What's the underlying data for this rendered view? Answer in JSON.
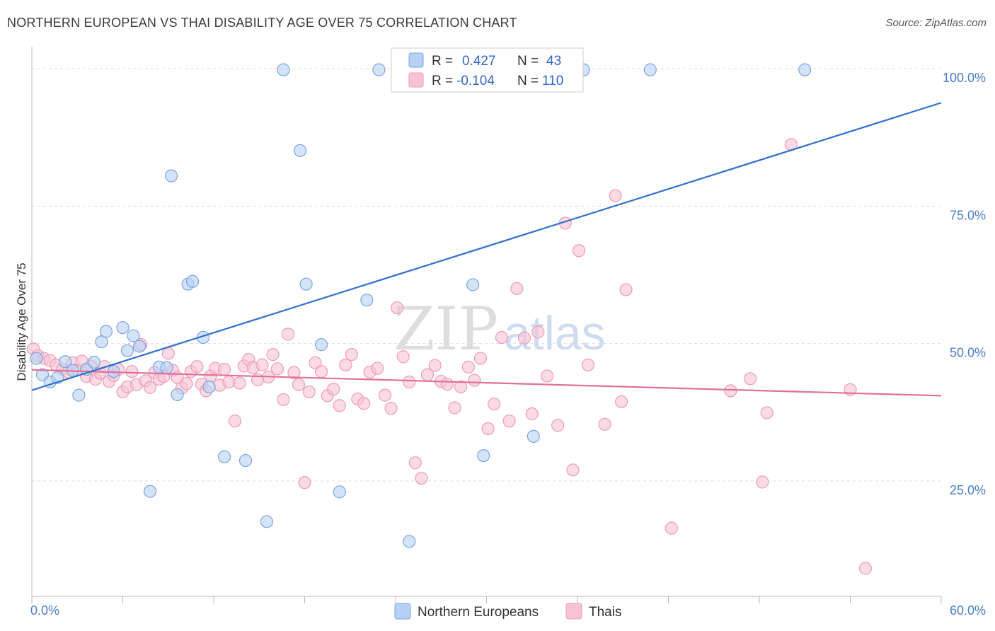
{
  "title": "NORTHERN EUROPEAN VS THAI DISABILITY AGE OVER 75 CORRELATION CHART",
  "source": "Source: ZipAtlas.com",
  "watermark": {
    "part1": "ZIP",
    "part2": "atlas"
  },
  "colors": {
    "blue_fill": "#b8d0f4",
    "blue_stroke": "#7aa6e0",
    "blue_line": "#2f6fce",
    "pink_fill": "#f7c3d4",
    "pink_stroke": "#ee9ab6",
    "pink_line": "#e0709a",
    "tick_label": "#4a7cc7",
    "grid": "#dddddd"
  },
  "legend": {
    "rows": [
      {
        "r_label": "R =",
        "r_value": "0.427",
        "n_label": "N =",
        "n_value": "43"
      },
      {
        "r_label": "R =",
        "r_value": "-0.104",
        "n_label": "N =",
        "n_value": "110"
      }
    ]
  },
  "bottom_legend": [
    "Northern Europeans",
    "Thais"
  ],
  "chart_data": {
    "type": "scatter",
    "title": "NORTHERN EUROPEAN VS THAI DISABILITY AGE OVER 75 CORRELATION CHART",
    "xlabel": "",
    "ylabel": "Disability Age Over 75",
    "xlim": [
      0,
      60
    ],
    "ylim": [
      4,
      104
    ],
    "x_tick_labels": [
      "0.0%",
      "60.0%"
    ],
    "y_ticks": [
      25,
      50,
      75,
      100
    ],
    "y_tick_labels": [
      "25.0%",
      "50.0%",
      "75.0%",
      "100.0%"
    ],
    "grid": true,
    "legend_position": "top-center",
    "series": [
      {
        "name": "Northern Europeans",
        "r": 0.427,
        "n": 43,
        "trend": {
          "x": [
            0,
            60
          ],
          "y": [
            41.5,
            93.8
          ]
        },
        "points": [
          [
            0.3,
            47.3
          ],
          [
            0.7,
            44.3
          ],
          [
            1.2,
            43.0
          ],
          [
            1.7,
            43.8
          ],
          [
            2.2,
            46.7
          ],
          [
            2.7,
            45.1
          ],
          [
            3.1,
            40.6
          ],
          [
            3.6,
            45.3
          ],
          [
            4.1,
            46.6
          ],
          [
            4.6,
            50.3
          ],
          [
            4.9,
            52.2
          ],
          [
            5.4,
            44.9
          ],
          [
            6.0,
            52.9
          ],
          [
            6.3,
            48.7
          ],
          [
            6.7,
            51.4
          ],
          [
            7.1,
            49.5
          ],
          [
            7.8,
            23.1
          ],
          [
            8.4,
            45.7
          ],
          [
            8.9,
            45.6
          ],
          [
            9.2,
            80.5
          ],
          [
            9.6,
            40.7
          ],
          [
            10.3,
            60.8
          ],
          [
            10.6,
            61.3
          ],
          [
            11.3,
            51.1
          ],
          [
            11.7,
            42.1
          ],
          [
            12.7,
            29.4
          ],
          [
            14.1,
            28.7
          ],
          [
            15.5,
            17.6
          ],
          [
            16.6,
            99.8
          ],
          [
            17.7,
            85.1
          ],
          [
            18.1,
            60.8
          ],
          [
            19.1,
            49.8
          ],
          [
            20.3,
            23.0
          ],
          [
            22.1,
            57.9
          ],
          [
            22.9,
            99.8
          ],
          [
            24.9,
            14.0
          ],
          [
            26.1,
            99.8
          ],
          [
            29.1,
            60.7
          ],
          [
            29.8,
            29.6
          ],
          [
            33.1,
            33.1
          ],
          [
            36.4,
            99.8
          ],
          [
            40.8,
            99.8
          ],
          [
            51.0,
            99.8
          ]
        ]
      },
      {
        "name": "Thais",
        "r": -0.104,
        "n": 110,
        "trend": {
          "x": [
            0,
            60
          ],
          "y": [
            45.2,
            40.5
          ]
        },
        "points": [
          [
            0.1,
            49.0
          ],
          [
            0.4,
            47.8
          ],
          [
            0.8,
            47.3
          ],
          [
            1.2,
            46.9
          ],
          [
            1.6,
            46.1
          ],
          [
            2.0,
            45.3
          ],
          [
            2.4,
            44.8
          ],
          [
            2.7,
            46.5
          ],
          [
            3.0,
            45.2
          ],
          [
            3.3,
            46.8
          ],
          [
            3.6,
            44.0
          ],
          [
            3.9,
            45.9
          ],
          [
            4.2,
            43.5
          ],
          [
            4.5,
            44.6
          ],
          [
            4.8,
            45.8
          ],
          [
            5.1,
            43.1
          ],
          [
            5.4,
            44.2
          ],
          [
            5.7,
            45.3
          ],
          [
            6.0,
            41.2
          ],
          [
            6.3,
            42.1
          ],
          [
            6.6,
            44.9
          ],
          [
            6.9,
            42.5
          ],
          [
            7.2,
            49.8
          ],
          [
            7.5,
            43.2
          ],
          [
            7.8,
            42.0
          ],
          [
            8.1,
            44.7
          ],
          [
            8.4,
            43.5
          ],
          [
            8.7,
            44.0
          ],
          [
            9.0,
            48.2
          ],
          [
            9.3,
            45.1
          ],
          [
            9.6,
            43.8
          ],
          [
            9.9,
            41.9
          ],
          [
            10.2,
            42.7
          ],
          [
            10.5,
            44.9
          ],
          [
            10.9,
            45.8
          ],
          [
            11.2,
            42.6
          ],
          [
            11.5,
            41.4
          ],
          [
            11.8,
            44.1
          ],
          [
            12.1,
            45.5
          ],
          [
            12.4,
            42.4
          ],
          [
            12.7,
            45.3
          ],
          [
            13.0,
            43.0
          ],
          [
            13.4,
            35.9
          ],
          [
            13.7,
            42.8
          ],
          [
            14.0,
            45.9
          ],
          [
            14.3,
            47.1
          ],
          [
            14.6,
            45.6
          ],
          [
            14.9,
            43.4
          ],
          [
            15.2,
            46.1
          ],
          [
            15.6,
            43.9
          ],
          [
            15.9,
            48.0
          ],
          [
            16.2,
            45.4
          ],
          [
            16.6,
            39.8
          ],
          [
            16.9,
            51.7
          ],
          [
            17.3,
            44.7
          ],
          [
            17.6,
            42.5
          ],
          [
            18.0,
            24.7
          ],
          [
            18.3,
            41.2
          ],
          [
            18.7,
            46.5
          ],
          [
            19.1,
            44.9
          ],
          [
            19.5,
            40.5
          ],
          [
            19.9,
            41.7
          ],
          [
            20.3,
            38.7
          ],
          [
            20.7,
            46.1
          ],
          [
            21.1,
            48.0
          ],
          [
            21.5,
            39.9
          ],
          [
            21.9,
            39.1
          ],
          [
            22.3,
            44.8
          ],
          [
            22.8,
            45.5
          ],
          [
            23.3,
            40.6
          ],
          [
            23.7,
            38.2
          ],
          [
            24.1,
            56.5
          ],
          [
            24.5,
            47.6
          ],
          [
            24.9,
            43.0
          ],
          [
            25.3,
            28.3
          ],
          [
            25.7,
            25.5
          ],
          [
            26.1,
            44.3
          ],
          [
            26.6,
            46.0
          ],
          [
            27.0,
            43.1
          ],
          [
            27.4,
            42.6
          ],
          [
            27.9,
            38.3
          ],
          [
            28.3,
            42.1
          ],
          [
            28.8,
            45.7
          ],
          [
            29.2,
            43.3
          ],
          [
            29.6,
            47.3
          ],
          [
            30.1,
            34.5
          ],
          [
            30.5,
            39.0
          ],
          [
            31.0,
            51.1
          ],
          [
            31.5,
            35.9
          ],
          [
            32.0,
            60.0
          ],
          [
            32.5,
            51.0
          ],
          [
            33.0,
            37.2
          ],
          [
            33.4,
            52.1
          ],
          [
            34.0,
            44.1
          ],
          [
            34.7,
            35.1
          ],
          [
            35.2,
            71.9
          ],
          [
            35.7,
            27.0
          ],
          [
            36.1,
            66.9
          ],
          [
            36.7,
            46.1
          ],
          [
            37.8,
            35.3
          ],
          [
            38.5,
            76.9
          ],
          [
            38.9,
            39.4
          ],
          [
            39.2,
            59.8
          ],
          [
            42.2,
            16.4
          ],
          [
            46.1,
            41.4
          ],
          [
            47.4,
            43.6
          ],
          [
            48.2,
            24.8
          ],
          [
            48.5,
            37.4
          ],
          [
            50.1,
            86.2
          ],
          [
            54.0,
            41.6
          ],
          [
            55.0,
            9.1
          ]
        ]
      }
    ]
  }
}
